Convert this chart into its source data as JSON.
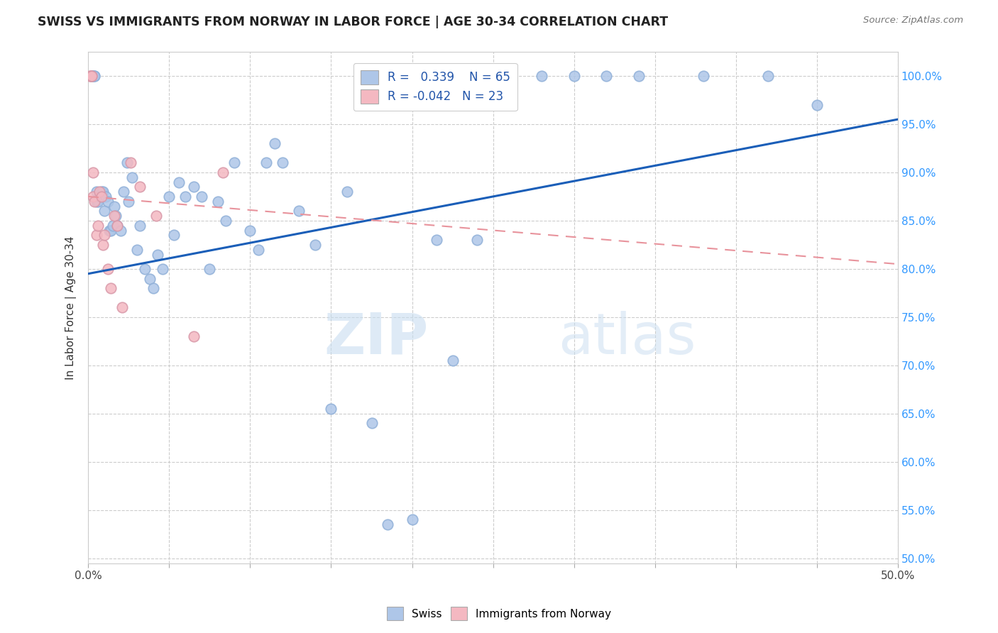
{
  "title": "SWISS VS IMMIGRANTS FROM NORWAY IN LABOR FORCE | AGE 30-34 CORRELATION CHART",
  "source": "Source: ZipAtlas.com",
  "ylabel": "In Labor Force | Age 30-34",
  "x_min": 0.0,
  "x_max": 0.5,
  "y_min": 0.495,
  "y_max": 1.025,
  "legend_R_swiss": "0.339",
  "legend_N_swiss": "65",
  "legend_R_norway": "-0.042",
  "legend_N_norway": "23",
  "swiss_color": "#aec6e8",
  "norway_color": "#f4b8c1",
  "trend_swiss_color": "#1a5eb8",
  "trend_norway_color": "#e8939c",
  "watermark_zip": "ZIP",
  "watermark_atlas": "atlas",
  "swiss_x": [
    0.002,
    0.003,
    0.003,
    0.004,
    0.004,
    0.005,
    0.005,
    0.006,
    0.007,
    0.008,
    0.009,
    0.01,
    0.011,
    0.012,
    0.013,
    0.014,
    0.015,
    0.016,
    0.017,
    0.018,
    0.02,
    0.022,
    0.024,
    0.025,
    0.027,
    0.03,
    0.032,
    0.035,
    0.038,
    0.04,
    0.043,
    0.046,
    0.05,
    0.053,
    0.056,
    0.06,
    0.065,
    0.07,
    0.075,
    0.08,
    0.085,
    0.09,
    0.1,
    0.105,
    0.11,
    0.115,
    0.12,
    0.13,
    0.14,
    0.15,
    0.16,
    0.175,
    0.185,
    0.2,
    0.215,
    0.225,
    0.24,
    0.26,
    0.28,
    0.3,
    0.32,
    0.34,
    0.38,
    0.42,
    0.45
  ],
  "swiss_y": [
    1.0,
    1.0,
    1.0,
    1.0,
    1.0,
    0.88,
    0.87,
    0.87,
    0.875,
    0.88,
    0.88,
    0.86,
    0.875,
    0.87,
    0.84,
    0.84,
    0.845,
    0.865,
    0.855,
    0.845,
    0.84,
    0.88,
    0.91,
    0.87,
    0.895,
    0.82,
    0.845,
    0.8,
    0.79,
    0.78,
    0.815,
    0.8,
    0.875,
    0.835,
    0.89,
    0.875,
    0.885,
    0.875,
    0.8,
    0.87,
    0.85,
    0.91,
    0.84,
    0.82,
    0.91,
    0.93,
    0.91,
    0.86,
    0.825,
    0.655,
    0.88,
    0.64,
    0.535,
    0.54,
    0.83,
    0.705,
    0.83,
    1.0,
    1.0,
    1.0,
    1.0,
    1.0,
    1.0,
    1.0,
    0.97
  ],
  "norway_x": [
    0.001,
    0.001,
    0.002,
    0.002,
    0.003,
    0.003,
    0.004,
    0.005,
    0.006,
    0.007,
    0.008,
    0.009,
    0.01,
    0.012,
    0.014,
    0.016,
    0.018,
    0.021,
    0.026,
    0.032,
    0.042,
    0.065,
    0.083
  ],
  "norway_y": [
    1.0,
    1.0,
    1.0,
    1.0,
    0.9,
    0.875,
    0.87,
    0.835,
    0.845,
    0.88,
    0.875,
    0.825,
    0.835,
    0.8,
    0.78,
    0.855,
    0.845,
    0.76,
    0.91,
    0.885,
    0.855,
    0.73,
    0.9
  ],
  "swiss_trend_x0": 0.0,
  "swiss_trend_y0": 0.795,
  "swiss_trend_x1": 0.5,
  "swiss_trend_y1": 0.955,
  "norway_trend_x0": 0.0,
  "norway_trend_y0": 0.875,
  "norway_trend_x1": 0.5,
  "norway_trend_y1": 0.805
}
